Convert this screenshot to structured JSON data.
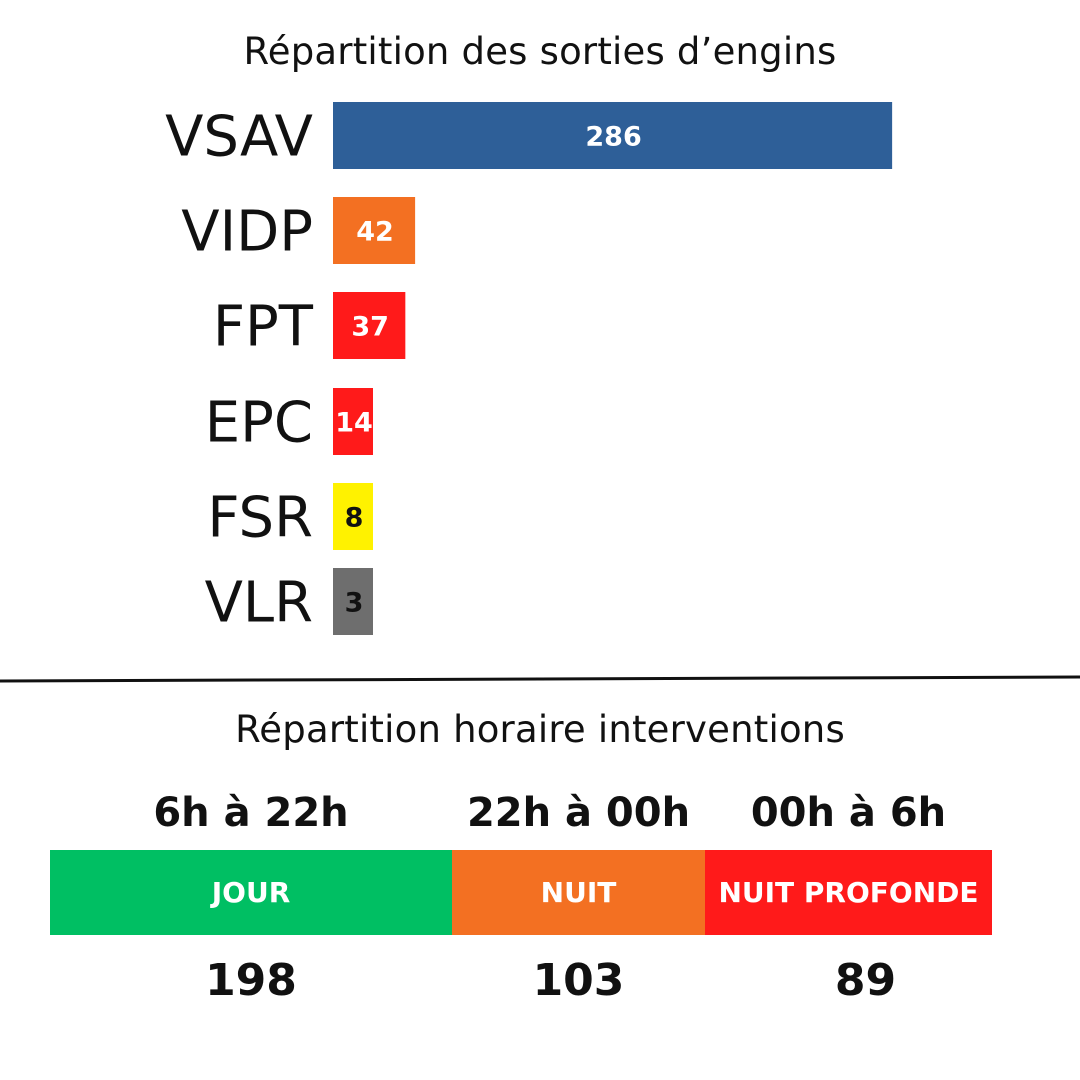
{
  "chart_data": [
    {
      "type": "bar",
      "orientation": "horizontal",
      "title": "Répartition des sorties d’engins",
      "categories": [
        "VSAV",
        "VIDP",
        "FPT",
        "EPC",
        "FSR",
        "VLR"
      ],
      "values": [
        286,
        42,
        37,
        14,
        8,
        3
      ],
      "colors": [
        "#2e5f98",
        "#f37022",
        "#ff1a1a",
        "#ff1a1a",
        "#fff200",
        "#6e6e6e"
      ],
      "label_colors": [
        "#ffffff",
        "#ffffff",
        "#ffffff",
        "#ffffff",
        "#111111",
        "#111111"
      ],
      "data_labels": true,
      "grid": false
    },
    {
      "type": "table",
      "title": "Répartition horaire interventions",
      "periods": [
        "6h à 22h",
        "22h à 00h",
        "00h à 6h"
      ],
      "segments": [
        "JOUR",
        "NUIT",
        "NUIT PROFONDE"
      ],
      "values": [
        198,
        103,
        89
      ],
      "colors": [
        "#00bf63",
        "#f37022",
        "#ff1a1a"
      ]
    }
  ]
}
